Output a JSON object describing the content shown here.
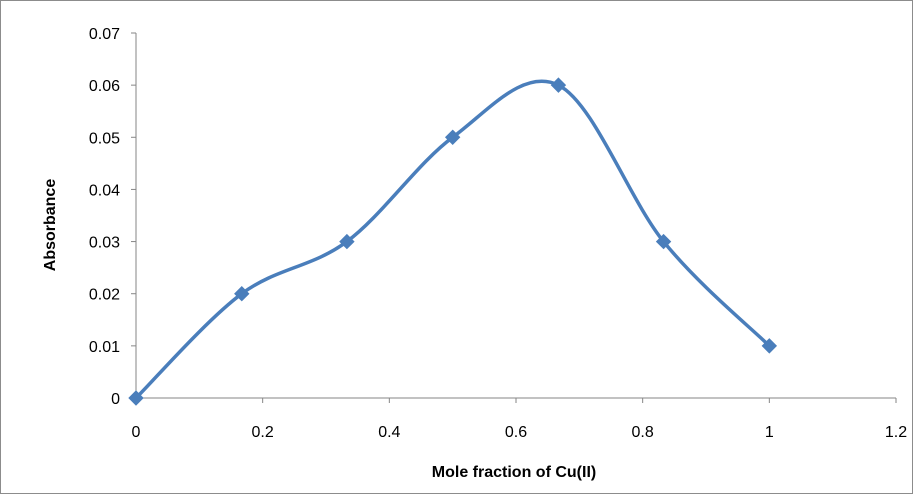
{
  "chart_data": {
    "type": "line",
    "title": "",
    "xlabel": "Mole fraction of Cu(II)",
    "ylabel": "Absorbance",
    "xlim": [
      0,
      1.2
    ],
    "ylim": [
      0,
      0.07
    ],
    "x_ticks": [
      "0",
      "0.2",
      "0.4",
      "0.6",
      "0.8",
      "1",
      "1.2"
    ],
    "y_ticks": [
      "0",
      "0.01",
      "0.02",
      "0.03",
      "0.04",
      "0.05",
      "0.06",
      "0.07"
    ],
    "grid": false,
    "legend": "none",
    "smooth": true,
    "marker": "diamond",
    "series": [
      {
        "color": "#4a7ebb",
        "x": [
          0,
          0.167,
          0.333,
          0.5,
          0.667,
          0.833,
          1
        ],
        "y": [
          0,
          0.02,
          0.03,
          0.05,
          0.06,
          0.03,
          0.01
        ]
      }
    ]
  }
}
